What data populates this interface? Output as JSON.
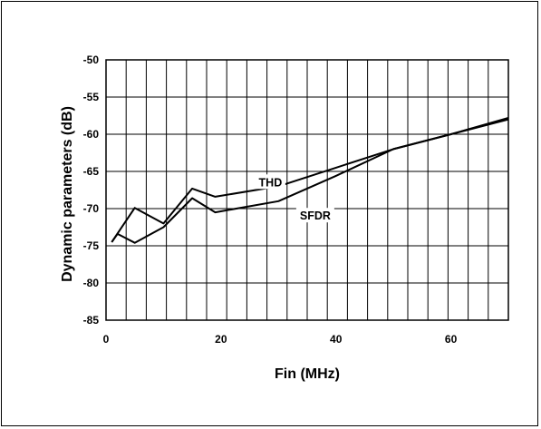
{
  "chart_data": {
    "type": "line",
    "xlabel": "Fin (MHz)",
    "ylabel": "Dynamic parameters (dB)",
    "xlim": [
      0,
      70
    ],
    "ylim": [
      -85,
      -50
    ],
    "x_ticks": [
      0,
      20,
      40,
      60
    ],
    "y_ticks": [
      -50,
      -55,
      -60,
      -65,
      -70,
      -75,
      -80,
      -85
    ],
    "x_minor_step": 3.5,
    "grid": true,
    "legend": "none",
    "series": [
      {
        "name": "THD",
        "x": [
          1,
          2,
          5,
          10,
          15,
          19,
          30,
          40,
          50,
          60,
          70
        ],
        "y": [
          -74.5,
          -73.4,
          -74.6,
          -72.5,
          -68.6,
          -70.5,
          -69.0,
          -65.6,
          -62.0,
          -60.0,
          -57.8
        ]
      },
      {
        "name": "SFDR",
        "x": [
          1,
          5,
          10,
          15,
          19,
          30,
          40,
          50,
          60,
          70
        ],
        "y": [
          -74.5,
          -69.9,
          -72.0,
          -67.3,
          -68.4,
          -67.0,
          -64.5,
          -62.0,
          -60.0,
          -58.0
        ]
      }
    ],
    "annotations": [
      {
        "text": "THD",
        "x": 28.6,
        "y": -66.5,
        "series": 0
      },
      {
        "text": "SFDR",
        "x": 36.4,
        "y": -71.0,
        "series": 1
      }
    ]
  }
}
